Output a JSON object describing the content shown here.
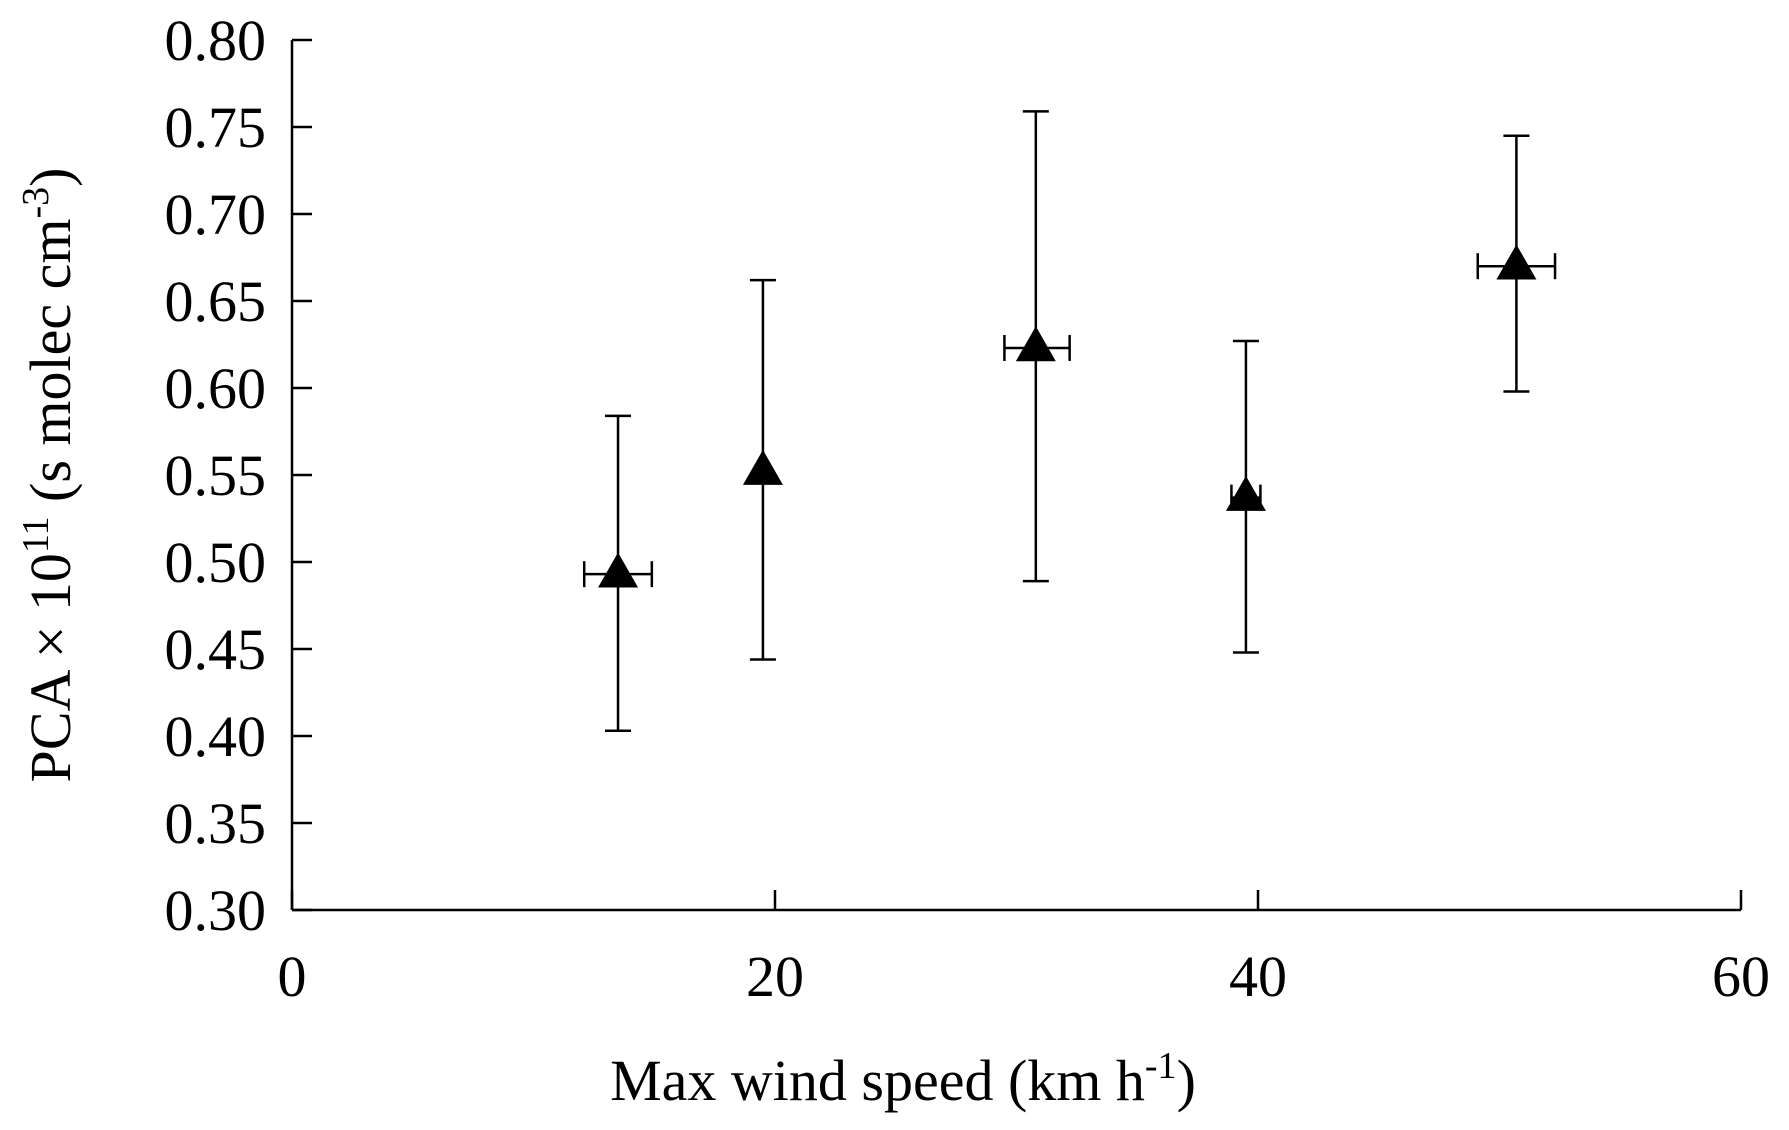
{
  "chart_data": {
    "type": "scatter",
    "title": "",
    "xlabel": {
      "base": "Max wind speed (km h",
      "sup": "-1",
      "end": ")"
    },
    "ylabel": {
      "base": "PCA × 10",
      "sup1": "11",
      "mid": " (s molec cm",
      "sup2": "-3",
      "end": ")"
    },
    "xlim": [
      0,
      60
    ],
    "ylim": [
      0.3,
      0.8
    ],
    "xticks": [
      0,
      20,
      40,
      60
    ],
    "xtick_labels": [
      "0",
      "20",
      "40",
      "60"
    ],
    "yticks": [
      0.3,
      0.35,
      0.4,
      0.45,
      0.5,
      0.55,
      0.6,
      0.65,
      0.7,
      0.75,
      0.8
    ],
    "ytick_labels": [
      "0.30",
      "0.35",
      "0.40",
      "0.45",
      "0.50",
      "0.55",
      "0.60",
      "0.65",
      "0.70",
      "0.75",
      "0.80"
    ],
    "grid": false,
    "legend": "none",
    "marker": "triangle",
    "color": "#000000",
    "series": [
      {
        "points": [
          {
            "x": 13.5,
            "y": 0.493,
            "yerr_low": 0.403,
            "yerr_high": 0.584,
            "xerr_low": 12.1,
            "xerr_high": 14.9
          },
          {
            "x": 19.5,
            "y": 0.552,
            "yerr_low": 0.444,
            "yerr_high": 0.662,
            "xerr_low": null,
            "xerr_high": null
          },
          {
            "x": 30.8,
            "y": 0.623,
            "yerr_low": 0.489,
            "yerr_high": 0.759,
            "xerr_low": 29.5,
            "xerr_high": 32.2
          },
          {
            "x": 39.5,
            "y": 0.537,
            "yerr_low": 0.448,
            "yerr_high": 0.627,
            "xerr_low": 38.9,
            "xerr_high": 40.1
          },
          {
            "x": 50.7,
            "y": 0.67,
            "yerr_low": 0.598,
            "yerr_high": 0.745,
            "xerr_low": 49.1,
            "xerr_high": 52.3
          }
        ]
      }
    ]
  }
}
